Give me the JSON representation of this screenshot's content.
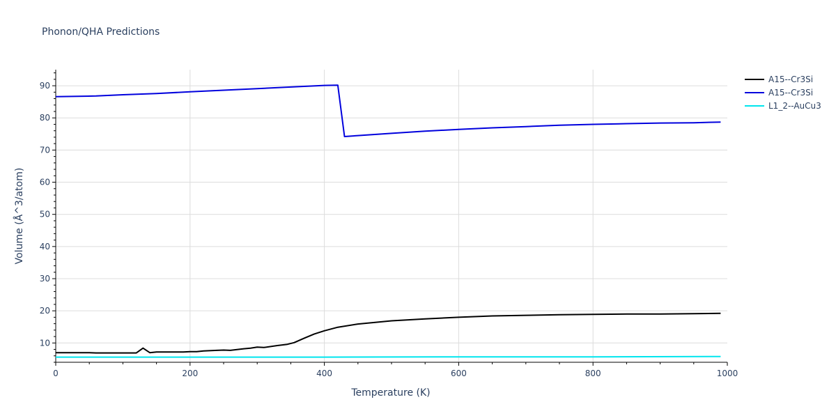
{
  "chart_data": {
    "type": "line",
    "title": "Phonon/QHA Predictions",
    "xlabel": "Temperature (K)",
    "ylabel": "Volume (Å^3/atom)",
    "xlim": [
      0,
      1000
    ],
    "ylim": [
      4,
      95
    ],
    "xticks": [
      0,
      200,
      400,
      600,
      800,
      1000
    ],
    "yticks": [
      10,
      20,
      30,
      40,
      50,
      60,
      70,
      80,
      90
    ],
    "grid": true,
    "legend_position": "top-right",
    "series": [
      {
        "name": "A15--Cr3Si",
        "color": "#000000",
        "x": [
          0,
          50,
          60,
          100,
          120,
          130,
          140,
          150,
          160,
          190,
          200,
          210,
          220,
          240,
          250,
          260,
          280,
          290,
          300,
          310,
          330,
          345,
          355,
          370,
          385,
          400,
          420,
          450,
          500,
          550,
          600,
          650,
          700,
          750,
          800,
          850,
          900,
          950,
          990
        ],
        "y": [
          7.0,
          7.0,
          6.9,
          6.9,
          6.9,
          8.4,
          7.0,
          7.2,
          7.2,
          7.2,
          7.3,
          7.3,
          7.5,
          7.7,
          7.8,
          7.7,
          8.2,
          8.4,
          8.7,
          8.6,
          9.2,
          9.6,
          10.1,
          11.5,
          12.8,
          13.8,
          14.9,
          15.9,
          16.9,
          17.5,
          18.0,
          18.4,
          18.6,
          18.8,
          18.9,
          19.0,
          19.0,
          19.1,
          19.2
        ]
      },
      {
        "name": "A15--Cr3Si",
        "color": "#0000dd",
        "x": [
          0,
          60,
          100,
          150,
          200,
          250,
          300,
          350,
          400,
          420,
          430,
          450,
          500,
          550,
          600,
          650,
          700,
          750,
          800,
          850,
          900,
          950,
          990
        ],
        "y": [
          86.6,
          86.8,
          87.2,
          87.6,
          88.1,
          88.6,
          89.1,
          89.6,
          90.1,
          90.2,
          74.2,
          74.5,
          75.2,
          75.9,
          76.4,
          76.9,
          77.3,
          77.7,
          78.0,
          78.2,
          78.4,
          78.5,
          78.7
        ]
      },
      {
        "name": "L1_2--AuCu3",
        "color": "#00e5ee",
        "x": [
          0,
          200,
          400,
          600,
          800,
          990
        ],
        "y": [
          5.6,
          5.6,
          5.6,
          5.7,
          5.7,
          5.8
        ]
      }
    ]
  }
}
